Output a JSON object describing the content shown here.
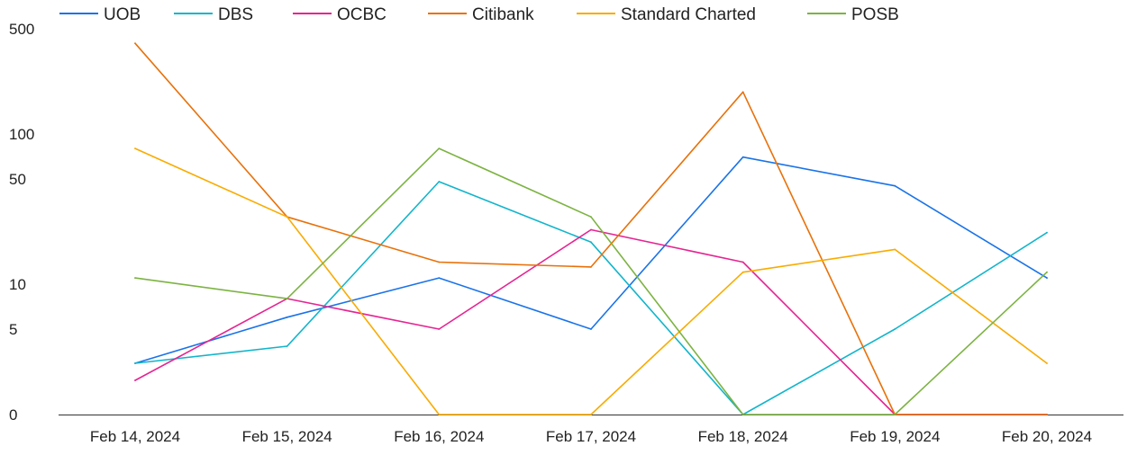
{
  "chart_data": {
    "type": "line",
    "categories": [
      "Feb 14, 2024",
      "Feb 15, 2024",
      "Feb 16, 2024",
      "Feb 17, 2024",
      "Feb 18, 2024",
      "Feb 19, 2024",
      "Feb 20, 2024"
    ],
    "y_scale": "symlog",
    "y_ticks": [
      0,
      5,
      10,
      50,
      100,
      500
    ],
    "y_tick_labels": [
      "0",
      "5",
      "10",
      "50",
      "100",
      "500"
    ],
    "grid": false,
    "legend_position": "top-left",
    "series": [
      {
        "name": "UOB",
        "color": "#1a73e8",
        "values": [
          3,
          6,
          11,
          5,
          70,
          45,
          11
        ]
      },
      {
        "name": "DBS",
        "color": "#12b5cb",
        "values": [
          3,
          4,
          48,
          19,
          0,
          5,
          22
        ]
      },
      {
        "name": "OCBC",
        "color": "#e52592",
        "values": [
          2,
          8,
          5,
          23,
          14,
          0,
          0
        ]
      },
      {
        "name": "Citibank",
        "color": "#e8710a",
        "values": [
          400,
          28,
          14,
          13,
          190,
          0,
          0
        ]
      },
      {
        "name": "Standard Charted",
        "color": "#f9ab00",
        "values": [
          80,
          28,
          0,
          0,
          12,
          17,
          3
        ]
      },
      {
        "name": "POSB",
        "color": "#7cb342",
        "values": [
          11,
          8,
          80,
          28,
          0,
          0,
          12
        ]
      }
    ]
  }
}
